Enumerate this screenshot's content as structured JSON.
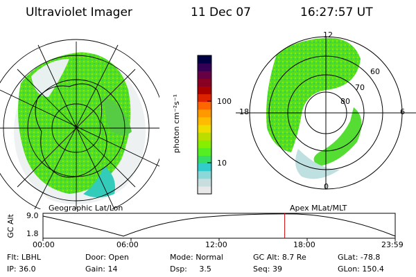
{
  "header": {
    "instrument": "Ultraviolet Imager",
    "date": "11 Dec 07",
    "time": "16:27:57 UT"
  },
  "left_panel": {
    "caption": "Geographic Lat/Lon"
  },
  "right_panel": {
    "caption": "Apex MLat/MLT",
    "mlt_labels": {
      "top": "12",
      "left": "18",
      "right": "6",
      "bottom": "0"
    },
    "lat_labels": [
      "60",
      "70",
      "80"
    ]
  },
  "colorbar": {
    "unit_label": "photon cm⁻²s⁻¹",
    "tick_labels": [
      "100",
      "10"
    ],
    "colors": [
      "#e8e8e8",
      "#c8dede",
      "#8ad8d8",
      "#33cccc",
      "#33dd66",
      "#55ee22",
      "#88ee00",
      "#bbdd00",
      "#eedd00",
      "#ffbb00",
      "#ff9900",
      "#ff6600",
      "#dd2200",
      "#aa0000",
      "#880022",
      "#660044",
      "#330055",
      "#000044"
    ]
  },
  "altitude_strip": {
    "axis_label": "GC Alt",
    "y_ticks": [
      "9.0",
      "1.8"
    ],
    "x_ticks": [
      "00:00",
      "06:00",
      "12:00",
      "18:00",
      "23:59"
    ],
    "current_marker_hours": 16.47,
    "marker_color": "#cc0000"
  },
  "status": {
    "row1": [
      {
        "label": "Flt:",
        "value": "LBHL"
      },
      {
        "label": "Door:",
        "value": "Open"
      },
      {
        "label": "Mode:",
        "value": "Normal"
      },
      {
        "label": "GC Alt:",
        "value": "8.7 Re"
      },
      {
        "label": "GLat:",
        "value": "-78.8"
      }
    ],
    "row2": [
      {
        "label": "IP:",
        "value": "36.0"
      },
      {
        "label": "Gain:",
        "value": "14"
      },
      {
        "label": "Dsp:",
        "value": "3.5"
      },
      {
        "label": "Seq:",
        "value": "39"
      },
      {
        "label": "GLon:",
        "value": "150.4"
      }
    ]
  }
}
